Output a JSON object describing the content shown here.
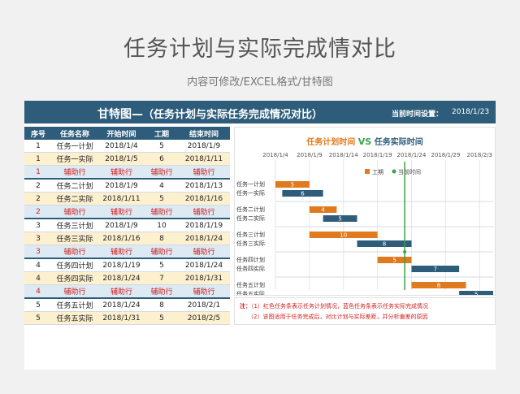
{
  "page": {
    "title": "任务计划与实际完成情对比",
    "subtitle": "内容可修改/EXCEL格式/甘特图"
  },
  "banner": {
    "title_main": "甘特图—",
    "title_paren": "（任务计划与实际任务完成情况对比）",
    "date_label": "当前时间设置：",
    "date_value": "2018/1/23"
  },
  "table": {
    "headers": [
      "序号",
      "任务名称",
      "开始时间",
      "工期",
      "结束时间"
    ],
    "rows": [
      {
        "kind": "plan",
        "cells": [
          "1",
          "任务一计划",
          "2018/1/4",
          "5",
          "2018/1/9"
        ]
      },
      {
        "kind": "actual",
        "cells": [
          "1",
          "任务一实际",
          "2018/1/5",
          "6",
          "2018/1/11"
        ]
      },
      {
        "kind": "aux",
        "cells": [
          "1",
          "辅助行",
          "辅助行",
          "辅助行",
          "辅助行"
        ]
      },
      {
        "kind": "plan",
        "cells": [
          "2",
          "任务二计划",
          "2018/1/9",
          "4",
          "2018/1/13"
        ]
      },
      {
        "kind": "actual",
        "cells": [
          "2",
          "任务二实际",
          "2018/1/11",
          "5",
          "2018/1/16"
        ]
      },
      {
        "kind": "aux",
        "cells": [
          "2",
          "辅助行",
          "辅助行",
          "辅助行",
          "辅助行"
        ]
      },
      {
        "kind": "plan",
        "cells": [
          "3",
          "任务三计划",
          "2018/1/9",
          "10",
          "2018/1/19"
        ]
      },
      {
        "kind": "actual",
        "cells": [
          "3",
          "任务三实际",
          "2018/1/16",
          "8",
          "2018/1/24"
        ]
      },
      {
        "kind": "aux",
        "cells": [
          "3",
          "辅助行",
          "辅助行",
          "辅助行",
          "辅助行"
        ]
      },
      {
        "kind": "plan",
        "cells": [
          "4",
          "任务四计划",
          "2018/1/19",
          "5",
          "2018/1/24"
        ]
      },
      {
        "kind": "actual",
        "cells": [
          "4",
          "任务四实际",
          "2018/1/24",
          "7",
          "2018/1/31"
        ]
      },
      {
        "kind": "aux",
        "cells": [
          "4",
          "辅助行",
          "辅助行",
          "辅助行",
          "辅助行"
        ]
      },
      {
        "kind": "plan",
        "cells": [
          "5",
          "任务五计划",
          "2018/1/24",
          "8",
          "2018/2/1"
        ]
      },
      {
        "kind": "actual",
        "cells": [
          "5",
          "任务五实际",
          "2018/1/31",
          "5",
          "2018/2/5"
        ]
      }
    ]
  },
  "chart": {
    "title_plan": "任务计划时间",
    "title_vs": "VS",
    "title_actual": "任务实际时间"
  },
  "chart_data": {
    "type": "bar",
    "orientation": "horizontal-gantt",
    "x_ticks": [
      "2018/1/4",
      "2018/1/9",
      "2018/1/14",
      "2018/1/19",
      "2018/1/24",
      "2018/1/29",
      "2018/2/3"
    ],
    "x_start": "2018/1/4",
    "x_end": "2018/2/5",
    "legend": [
      {
        "name": "工期",
        "color": "#e07a1f"
      },
      {
        "name": "当前时间",
        "color": "#3aa44a"
      }
    ],
    "current_date": "2018/1/23",
    "tasks": [
      {
        "label": "任务一计划",
        "start": "2018/1/4",
        "duration": 5,
        "kind": "plan"
      },
      {
        "label": "任务一实际",
        "start": "2018/1/5",
        "duration": 6,
        "kind": "actual"
      },
      {
        "label": "任务二计划",
        "start": "2018/1/9",
        "duration": 4,
        "kind": "plan"
      },
      {
        "label": "任务二实际",
        "start": "2018/1/11",
        "duration": 5,
        "kind": "actual"
      },
      {
        "label": "任务三计划",
        "start": "2018/1/9",
        "duration": 10,
        "kind": "plan"
      },
      {
        "label": "任务三实际",
        "start": "2018/1/16",
        "duration": 8,
        "kind": "actual"
      },
      {
        "label": "任务四计划",
        "start": "2018/1/19",
        "duration": 5,
        "kind": "plan"
      },
      {
        "label": "任务四实际",
        "start": "2018/1/24",
        "duration": 7,
        "kind": "actual"
      },
      {
        "label": "任务五计划",
        "start": "2018/1/24",
        "duration": 8,
        "kind": "plan"
      },
      {
        "label": "任务五实际",
        "start": "2018/1/31",
        "duration": 5,
        "kind": "actual"
      }
    ],
    "colors": {
      "plan": "#e07a1f",
      "actual": "#2e5d7b",
      "current": "#3aa44a"
    }
  },
  "notes": {
    "label": "注：",
    "line1": "（1）红色任务条表示任务计划情况，蓝色任务条表示任务实际完成情况",
    "line2": "（2）该图适用于任务完成后，对比计划与实际差距，并分析偏差的原因"
  }
}
